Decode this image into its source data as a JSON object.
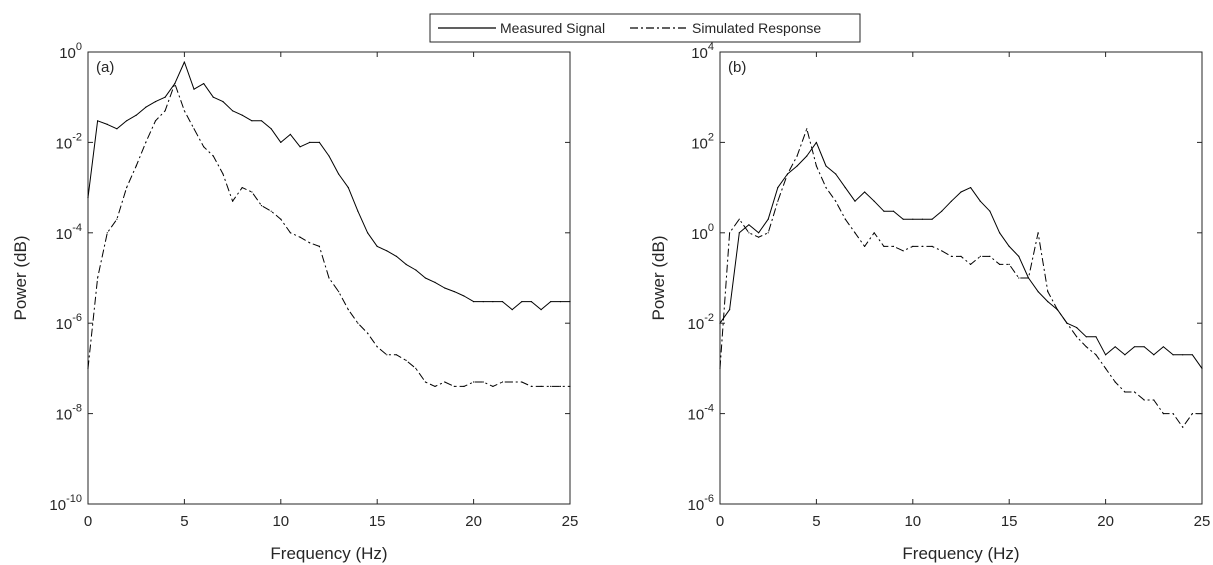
{
  "legend": {
    "entries": [
      {
        "label": "Measured Signal",
        "style": "solid"
      },
      {
        "label": "Simulated Response",
        "style": "dashdot"
      }
    ],
    "placement": "top-center"
  },
  "chart_data": [
    {
      "panel_label": "(a)",
      "type": "line",
      "xlabel": "Frequency (Hz)",
      "ylabel": "Power (dB)",
      "xlim": [
        0,
        25
      ],
      "ylim_exponent": [
        -10,
        0
      ],
      "yscale": "log",
      "grid": false,
      "xticks": [
        "0",
        "5",
        "10",
        "15",
        "20",
        "25"
      ],
      "yticks": [
        {
          "base": "10",
          "exp": "-10"
        },
        {
          "base": "10",
          "exp": "-8"
        },
        {
          "base": "10",
          "exp": "-6"
        },
        {
          "base": "10",
          "exp": "-4"
        },
        {
          "base": "10",
          "exp": "-2"
        },
        {
          "base": "10",
          "exp": "0"
        }
      ],
      "series": [
        {
          "name": "Measured Signal",
          "style": "solid",
          "color": "#000000",
          "x": [
            0,
            0.5,
            1,
            1.5,
            2,
            2.5,
            3,
            3.5,
            4,
            4.5,
            5,
            5.5,
            6,
            6.5,
            7,
            7.5,
            8,
            8.5,
            9,
            9.5,
            10,
            10.5,
            11,
            11.5,
            12,
            12.5,
            13,
            13.5,
            14,
            14.5,
            15,
            15.5,
            16,
            16.5,
            17,
            17.5,
            18,
            18.5,
            19,
            19.5,
            20,
            20.5,
            21,
            21.5,
            22,
            22.5,
            23,
            23.5,
            24,
            24.5,
            25
          ],
          "y": [
            0.0006,
            0.03,
            0.025,
            0.02,
            0.03,
            0.04,
            0.06,
            0.08,
            0.1,
            0.2,
            0.6,
            0.15,
            0.2,
            0.1,
            0.08,
            0.05,
            0.04,
            0.03,
            0.03,
            0.02,
            0.01,
            0.015,
            0.008,
            0.01,
            0.01,
            0.005,
            0.002,
            0.001,
            0.0003,
            0.0001,
            5e-05,
            4e-05,
            3e-05,
            2e-05,
            1.5e-05,
            1e-05,
            8e-06,
            6e-06,
            5e-06,
            4e-06,
            3e-06,
            3e-06,
            3e-06,
            3e-06,
            2e-06,
            3e-06,
            3e-06,
            2e-06,
            3e-06,
            3e-06,
            3e-06
          ]
        },
        {
          "name": "Simulated Response",
          "style": "dashdot",
          "color": "#000000",
          "x": [
            0,
            0.5,
            1,
            1.5,
            2,
            2.5,
            3,
            3.5,
            4,
            4.5,
            5,
            5.5,
            6,
            6.5,
            7,
            7.5,
            8,
            8.5,
            9,
            9.5,
            10,
            10.5,
            11,
            11.5,
            12,
            12.5,
            13,
            13.5,
            14,
            14.5,
            15,
            15.5,
            16,
            16.5,
            17,
            17.5,
            18,
            18.5,
            19,
            19.5,
            20,
            20.5,
            21,
            21.5,
            22,
            22.5,
            23,
            23.5,
            24,
            24.5,
            25
          ],
          "y": [
            1e-07,
            1e-05,
            0.0001,
            0.0002,
            0.001,
            0.003,
            0.01,
            0.03,
            0.05,
            0.2,
            0.05,
            0.02,
            0.008,
            0.005,
            0.002,
            0.0005,
            0.001,
            0.0008,
            0.0004,
            0.0003,
            0.0002,
            0.0001,
            8e-05,
            6e-05,
            5e-05,
            1e-05,
            5e-06,
            2e-06,
            1e-06,
            6e-07,
            3e-07,
            2e-07,
            2e-07,
            1.5e-07,
            1e-07,
            5e-08,
            4e-08,
            5e-08,
            4e-08,
            4e-08,
            5e-08,
            5e-08,
            4e-08,
            5e-08,
            5e-08,
            5e-08,
            4e-08,
            4e-08,
            4e-08,
            4e-08,
            4e-08
          ]
        }
      ]
    },
    {
      "panel_label": "(b)",
      "type": "line",
      "xlabel": "Frequency (Hz)",
      "ylabel": "Power (dB)",
      "xlim": [
        0,
        25
      ],
      "ylim_exponent": [
        -6,
        4
      ],
      "yscale": "log",
      "grid": false,
      "xticks": [
        "0",
        "5",
        "10",
        "15",
        "20",
        "25"
      ],
      "yticks": [
        {
          "base": "10",
          "exp": "-6"
        },
        {
          "base": "10",
          "exp": "-4"
        },
        {
          "base": "10",
          "exp": "-2"
        },
        {
          "base": "10",
          "exp": "0"
        },
        {
          "base": "10",
          "exp": "2"
        },
        {
          "base": "10",
          "exp": "4"
        }
      ],
      "series": [
        {
          "name": "Measured Signal",
          "style": "solid",
          "color": "#000000",
          "x": [
            0,
            0.5,
            1,
            1.5,
            2,
            2.5,
            3,
            3.5,
            4,
            4.5,
            5,
            5.5,
            6,
            6.5,
            7,
            7.5,
            8,
            8.5,
            9,
            9.5,
            10,
            10.5,
            11,
            11.5,
            12,
            12.5,
            13,
            13.5,
            14,
            14.5,
            15,
            15.5,
            16,
            16.5,
            17,
            17.5,
            18,
            18.5,
            19,
            19.5,
            20,
            20.5,
            21,
            21.5,
            22,
            22.5,
            23,
            23.5,
            24,
            24.5,
            25
          ],
          "y": [
            0.01,
            0.02,
            1,
            1.5,
            1,
            2,
            10,
            20,
            30,
            50,
            100,
            30,
            20,
            10,
            5,
            8,
            5,
            3,
            3,
            2,
            2,
            2,
            2,
            3,
            5,
            8,
            10,
            5,
            3,
            1,
            0.5,
            0.3,
            0.1,
            0.05,
            0.03,
            0.02,
            0.01,
            0.008,
            0.005,
            0.005,
            0.002,
            0.003,
            0.002,
            0.003,
            0.003,
            0.002,
            0.003,
            0.002,
            0.002,
            0.002,
            0.001
          ]
        },
        {
          "name": "Simulated Response",
          "style": "dashdot",
          "color": "#000000",
          "x": [
            0,
            0.5,
            1,
            1.5,
            2,
            2.5,
            3,
            3.5,
            4,
            4.5,
            5,
            5.5,
            6,
            6.5,
            7,
            7.5,
            8,
            8.5,
            9,
            9.5,
            10,
            10.5,
            11,
            11.5,
            12,
            12.5,
            13,
            13.5,
            14,
            14.5,
            15,
            15.5,
            16,
            16.5,
            17,
            17.5,
            18,
            18.5,
            19,
            19.5,
            20,
            20.5,
            21,
            21.5,
            22,
            22.5,
            23,
            23.5,
            24,
            24.5,
            25
          ],
          "y": [
            0.001,
            1,
            2,
            1,
            0.8,
            1,
            5,
            20,
            50,
            200,
            30,
            10,
            5,
            2,
            1,
            0.5,
            1,
            0.5,
            0.5,
            0.4,
            0.5,
            0.5,
            0.5,
            0.4,
            0.3,
            0.3,
            0.2,
            0.3,
            0.3,
            0.2,
            0.2,
            0.1,
            0.1,
            1,
            0.05,
            0.02,
            0.01,
            0.005,
            0.003,
            0.002,
            0.001,
            0.0005,
            0.0003,
            0.0003,
            0.0002,
            0.0002,
            0.0001,
            0.0001,
            5e-05,
            0.0001,
            0.0001
          ]
        }
      ]
    }
  ]
}
